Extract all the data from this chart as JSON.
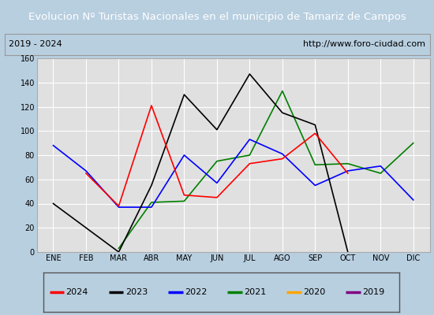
{
  "title": "Evolucion Nº Turistas Nacionales en el municipio de Tamariz de Campos",
  "subtitle_left": "2019 - 2024",
  "subtitle_right": "http://www.foro-ciudad.com",
  "x_labels": [
    "ENE",
    "FEB",
    "MAR",
    "ABR",
    "MAY",
    "JUN",
    "JUL",
    "AGO",
    "SEP",
    "OCT",
    "NOV",
    "DIC"
  ],
  "series_2024": [
    null,
    65,
    38,
    121,
    47,
    45,
    73,
    77,
    98,
    65,
    null,
    null
  ],
  "series_2023": [
    40,
    20,
    0,
    55,
    130,
    101,
    147,
    115,
    105,
    0,
    null,
    null
  ],
  "series_2022": [
    88,
    67,
    37,
    37,
    80,
    57,
    93,
    81,
    55,
    67,
    71,
    43
  ],
  "series_2021": [
    null,
    null,
    3,
    41,
    42,
    75,
    80,
    133,
    72,
    73,
    65,
    90
  ],
  "series_2020": [
    null,
    null,
    null,
    null,
    null,
    null,
    null,
    null,
    null,
    null,
    null,
    null
  ],
  "series_2019": [
    null,
    null,
    null,
    null,
    null,
    null,
    null,
    null,
    null,
    null,
    null,
    null
  ],
  "colors": {
    "2024": "#ff0000",
    "2023": "#000000",
    "2022": "#0000ff",
    "2021": "#008000",
    "2020": "#ffa500",
    "2019": "#800080"
  },
  "ylim": [
    0,
    160
  ],
  "yticks": [
    0,
    20,
    40,
    60,
    80,
    100,
    120,
    140,
    160
  ],
  "title_bg_color": "#4a90d9",
  "title_text_color": "#ffffff",
  "plot_bg_color": "#e0e0e0",
  "fig_bg_color": "#b8cfe0",
  "grid_color": "#ffffff",
  "info_bg_color": "#f0f0f0",
  "legend_order": [
    "2024",
    "2023",
    "2022",
    "2021",
    "2020",
    "2019"
  ]
}
